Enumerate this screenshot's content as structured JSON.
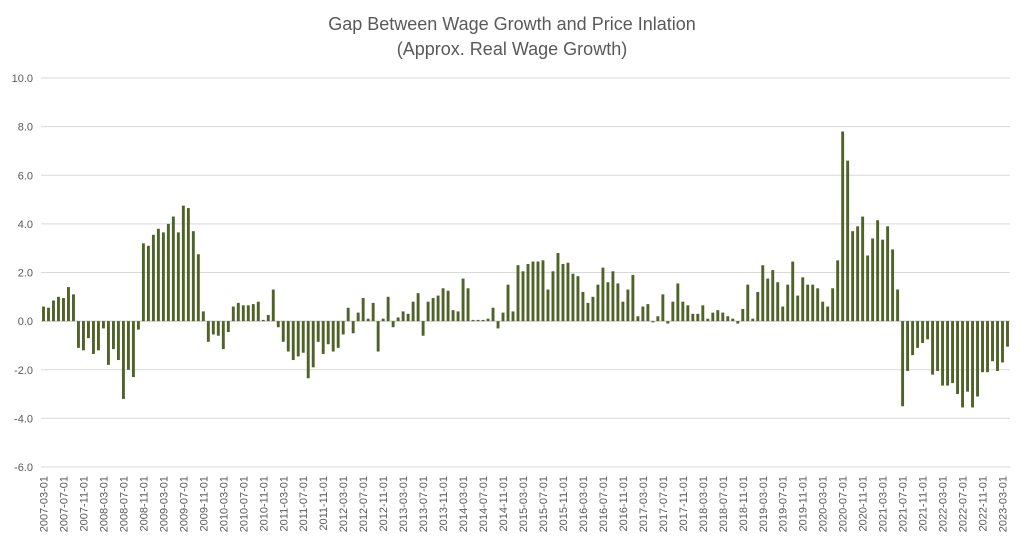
{
  "chart_data": {
    "type": "bar",
    "title": "Gap Between Wage Growth and Price Inlation",
    "subtitle": "(Approx. Real Wage Growth)",
    "xlabel": "",
    "ylabel": "",
    "ylim": [
      -6,
      10
    ],
    "y_ticks": [
      "10.0",
      "8.0",
      "6.0",
      "4.0",
      "2.0",
      "0.0",
      "-2.0",
      "-4.0",
      "-6.0"
    ],
    "y_tick_values": [
      10,
      8,
      6,
      4,
      2,
      0,
      -2,
      -4,
      -6
    ],
    "grid": true,
    "legend": "none",
    "bar_color": "#4f6228",
    "x_ticks": [
      "2007-03-01",
      "2007-07-01",
      "2007-11-01",
      "2008-03-01",
      "2008-07-01",
      "2008-11-01",
      "2009-03-01",
      "2009-07-01",
      "2009-11-01",
      "2010-03-01",
      "2010-07-01",
      "2010-11-01",
      "2011-03-01",
      "2011-07-01",
      "2011-11-01",
      "2012-03-01",
      "2012-07-01",
      "2012-11-01",
      "2013-03-01",
      "2013-07-01",
      "2013-11-01",
      "2014-03-01",
      "2014-07-01",
      "2014-11-01",
      "2015-03-01",
      "2015-07-01",
      "2015-11-01",
      "2016-03-01",
      "2016-07-01",
      "2016-11-01",
      "2017-03-01",
      "2017-07-01",
      "2017-11-01",
      "2018-03-01",
      "2018-07-01",
      "2018-11-01",
      "2019-03-01",
      "2019-07-01",
      "2019-11-01",
      "2020-03-01",
      "2020-07-01",
      "2020-11-01",
      "2021-03-01",
      "2021-07-01",
      "2021-11-01",
      "2022-03-01",
      "2022-07-01",
      "2022-11-01",
      "2023-03-01"
    ],
    "x_start": "2007-03-01",
    "frequency": "monthly",
    "values": [
      0.6,
      0.55,
      0.85,
      1.0,
      0.95,
      1.4,
      1.1,
      -1.1,
      -1.2,
      -0.7,
      -1.35,
      -1.2,
      -0.3,
      -1.8,
      -1.15,
      -1.6,
      -3.2,
      -2.0,
      -2.3,
      -0.35,
      3.2,
      3.1,
      3.55,
      3.8,
      3.65,
      4.0,
      4.3,
      3.65,
      4.75,
      4.65,
      3.7,
      2.75,
      0.4,
      -0.85,
      -0.55,
      -0.6,
      -1.15,
      -0.45,
      0.6,
      0.75,
      0.65,
      0.65,
      0.7,
      0.8,
      0.05,
      0.25,
      1.3,
      -0.25,
      -0.85,
      -1.25,
      -1.6,
      -1.45,
      -1.3,
      -2.35,
      -1.9,
      -0.85,
      -1.35,
      -0.95,
      -1.25,
      -1.1,
      -0.55,
      0.55,
      -0.5,
      0.35,
      0.95,
      0.1,
      0.75,
      -1.25,
      0.1,
      1.0,
      -0.25,
      0.15,
      0.4,
      0.3,
      0.8,
      1.15,
      -0.6,
      0.8,
      0.95,
      1.05,
      1.35,
      1.25,
      0.45,
      0.4,
      1.75,
      1.35,
      0.05,
      0.05,
      0.05,
      0.1,
      0.55,
      -0.3,
      0.35,
      1.5,
      0.4,
      2.3,
      2.05,
      2.35,
      2.45,
      2.45,
      2.5,
      1.3,
      2.05,
      2.8,
      2.35,
      2.4,
      1.95,
      1.85,
      1.2,
      0.75,
      1.0,
      1.5,
      2.2,
      1.6,
      2.05,
      1.55,
      0.8,
      1.3,
      1.9,
      0.2,
      0.6,
      0.7,
      -0.05,
      0.2,
      1.1,
      -0.1,
      0.8,
      1.55,
      0.8,
      0.65,
      0.3,
      0.3,
      0.65,
      0.1,
      0.35,
      0.45,
      0.35,
      0.2,
      0.1,
      -0.1,
      0.5,
      1.5,
      0.1,
      1.2,
      2.3,
      1.75,
      2.1,
      1.6,
      0.6,
      1.5,
      2.45,
      1.05,
      1.8,
      1.5,
      1.5,
      1.35,
      0.8,
      0.6,
      1.35,
      2.5,
      7.8,
      6.6,
      3.7,
      3.9,
      4.3,
      2.7,
      3.4,
      4.15,
      3.35,
      3.9,
      2.95,
      1.3,
      -3.5,
      -2.05,
      -1.4,
      -1.1,
      -0.9,
      -0.75,
      -2.2,
      -2.05,
      -2.65,
      -2.65,
      -2.55,
      -3.0,
      -3.55,
      -2.9,
      -3.55,
      -3.1,
      -2.1,
      -2.1,
      -1.65,
      -2.05,
      -1.7,
      -1.05
    ]
  }
}
